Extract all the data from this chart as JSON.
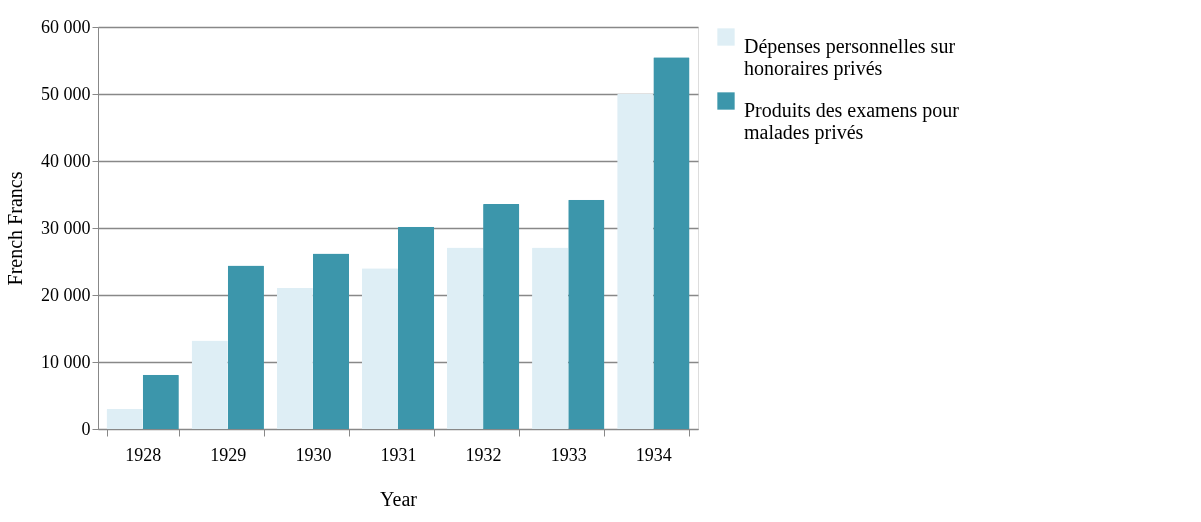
{
  "chart_data": {
    "type": "bar",
    "xlabel": "Year",
    "ylabel": "French Francs",
    "categories": [
      "1928",
      "1929",
      "1930",
      "1931",
      "1932",
      "1933",
      "1934"
    ],
    "series": [
      {
        "name": "Dépenses personnelles sur honoraires privés",
        "color": "#deeef5",
        "values": [
          3000,
          13200,
          21100,
          24000,
          27100,
          27100,
          50000
        ]
      },
      {
        "name": "Produits des examens pour malades privés",
        "color": "#3c96ab",
        "values": [
          8100,
          24400,
          26200,
          30200,
          33600,
          34200,
          55500
        ]
      }
    ],
    "ylim": [
      0,
      60000
    ],
    "yticks": [
      0,
      {
        "value": 10000,
        "label": "10 000"
      },
      {
        "value": 20000,
        "label": "20 000"
      },
      {
        "value": 30000,
        "label": "30 000"
      },
      {
        "value": 40000,
        "label": "40 000"
      },
      {
        "value": 50000,
        "label": "50 000"
      },
      {
        "value": 60000,
        "label": "60 000"
      }
    ],
    "grid": "y",
    "legend": "right"
  }
}
